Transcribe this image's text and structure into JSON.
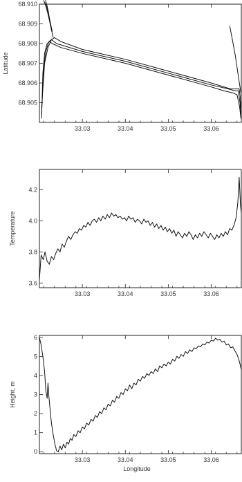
{
  "chart_data": [
    {
      "type": "line",
      "ylabel": "Latitude",
      "xlabel": "",
      "xlim": [
        33.02,
        33.067
      ],
      "ylim": [
        68.904,
        68.91
      ],
      "xticks": [
        "33.03",
        "33.04",
        "33.05",
        "33.06"
      ],
      "yticks": [
        "68.905",
        "68.906",
        "68.907",
        "68.908",
        "68.909",
        "68.910"
      ],
      "grid": false,
      "series": [
        {
          "x": [
            33.0205,
            33.0208,
            33.0212,
            33.0218,
            33.0224,
            33.023,
            33.025,
            33.03,
            33.04,
            33.05,
            33.06,
            33.063,
            33.065,
            33.066,
            33.0666,
            33.0669
          ],
          "y": [
            68.9042,
            68.9065,
            68.9075,
            68.908,
            68.9081,
            68.908,
            68.9078,
            68.9075,
            68.907,
            68.9064,
            68.9058,
            68.9056,
            68.9055,
            68.9054,
            68.9048,
            68.9042
          ]
        },
        {
          "x": [
            33.0205,
            33.021,
            33.0215,
            33.0222,
            33.0228,
            33.024,
            33.03,
            33.04,
            33.05,
            33.06,
            33.064,
            33.0655,
            33.0663,
            33.0667,
            33.0669
          ],
          "y": [
            68.9044,
            68.9068,
            68.9076,
            68.9081,
            68.9082,
            68.908,
            68.9076,
            68.9071,
            68.9065,
            68.9059,
            68.9057,
            68.9056,
            68.9056,
            68.905,
            68.9044
          ]
        },
        {
          "x": [
            33.0205,
            33.0212,
            33.022,
            33.0228,
            33.0235,
            33.025,
            33.03,
            33.04,
            33.05,
            33.06,
            33.0645,
            33.0658,
            33.0665,
            33.0668,
            33.0669
          ],
          "y": [
            68.9047,
            68.907,
            68.9078,
            68.9082,
            68.9083,
            68.9081,
            68.9077,
            68.9072,
            68.9066,
            68.906,
            68.9057,
            68.9057,
            68.9057,
            68.9052,
            68.9047
          ]
        },
        {
          "x": [
            33.021,
            33.0215,
            33.022,
            33.0224,
            33.0228,
            33.0232
          ],
          "y": [
            68.9102,
            68.9099,
            68.9095,
            68.9091,
            68.9087,
            68.9083
          ]
        },
        {
          "x": [
            33.0212,
            33.0218,
            33.0222,
            33.0226,
            33.023
          ],
          "y": [
            68.9101,
            68.9098,
            68.9094,
            68.909,
            68.9086
          ]
        },
        {
          "x": [
            33.0214,
            33.0218,
            33.0221,
            33.0224,
            33.0227
          ],
          "y": [
            68.9102,
            68.9099,
            68.9096,
            68.9092,
            68.9088
          ]
        },
        {
          "x": [
            33.0643,
            33.065,
            33.0656,
            33.066,
            33.0664,
            33.0667,
            33.0669
          ],
          "y": [
            68.9089,
            68.9081,
            68.9074,
            68.9068,
            68.9062,
            68.9058,
            68.9055
          ]
        }
      ]
    },
    {
      "type": "line",
      "ylabel": "Temperature",
      "xlabel": "",
      "xlim": [
        33.02,
        33.067
      ],
      "ylim": [
        3.57,
        4.33
      ],
      "xticks": [
        "33.03",
        "33.04",
        "33.05",
        "33.06"
      ],
      "yticks": [
        "3.6",
        "3.8",
        "4.0",
        "4.2"
      ],
      "grid": false,
      "series": [
        {
          "x": [
            33.02,
            33.0204,
            33.0209,
            33.0213,
            33.0218,
            33.0223,
            33.0228,
            33.0233,
            33.0238,
            33.0243,
            33.0248,
            33.0253,
            33.0258,
            33.0263,
            33.0268,
            33.0273,
            33.0278,
            33.0283,
            33.0288,
            33.0293,
            33.0298,
            33.0303,
            33.0308,
            33.0313,
            33.0318,
            33.0323,
            33.0328,
            33.0333,
            33.0338,
            33.0343,
            33.0348,
            33.0353,
            33.0358,
            33.0363,
            33.0368,
            33.0373,
            33.0378,
            33.0383,
            33.0388,
            33.0393,
            33.0398,
            33.0403,
            33.0408,
            33.0413,
            33.0418,
            33.0423,
            33.0428,
            33.0433,
            33.0438,
            33.0443,
            33.0448,
            33.0453,
            33.0458,
            33.0463,
            33.0468,
            33.0473,
            33.0478,
            33.0483,
            33.0488,
            33.0493,
            33.0498,
            33.0503,
            33.0508,
            33.0513,
            33.0518,
            33.0523,
            33.0528,
            33.0533,
            33.0538,
            33.0543,
            33.0548,
            33.0553,
            33.0558,
            33.0563,
            33.0568,
            33.0573,
            33.0578,
            33.0583,
            33.0588,
            33.0593,
            33.0598,
            33.0603,
            33.0608,
            33.0613,
            33.0618,
            33.0623,
            33.0628,
            33.0633,
            33.0638,
            33.0643,
            33.0648,
            33.0653,
            33.0658,
            33.0662,
            33.0665,
            33.0668,
            33.067
          ],
          "y": [
            3.62,
            3.78,
            3.75,
            3.8,
            3.74,
            3.72,
            3.77,
            3.75,
            3.79,
            3.82,
            3.8,
            3.85,
            3.83,
            3.87,
            3.9,
            3.88,
            3.91,
            3.93,
            3.92,
            3.95,
            3.94,
            3.97,
            3.96,
            3.99,
            3.97,
            4.0,
            4.01,
            3.99,
            4.02,
            4.0,
            4.03,
            4.01,
            4.04,
            4.02,
            4.05,
            4.03,
            4.04,
            4.02,
            4.03,
            4.01,
            4.02,
            4.0,
            4.03,
            4.01,
            4.02,
            3.99,
            4.01,
            4.0,
            3.98,
            4.01,
            3.99,
            4.0,
            3.97,
            3.99,
            3.96,
            3.98,
            3.95,
            3.97,
            3.94,
            3.96,
            3.93,
            3.95,
            3.92,
            3.94,
            3.9,
            3.93,
            3.91,
            3.89,
            3.92,
            3.9,
            3.93,
            3.91,
            3.88,
            3.91,
            3.89,
            3.92,
            3.9,
            3.93,
            3.91,
            3.89,
            3.92,
            3.9,
            3.88,
            3.91,
            3.89,
            3.92,
            3.9,
            3.93,
            3.91,
            3.95,
            3.94,
            3.97,
            4.02,
            4.12,
            4.28,
            4.1,
            4.05
          ]
        }
      ]
    },
    {
      "type": "line",
      "ylabel": "Height, m",
      "xlabel": "Longitude",
      "xlim": [
        33.02,
        33.067
      ],
      "ylim": [
        -0.1,
        6.1
      ],
      "xticks": [
        "33.03",
        "33.04",
        "33.05",
        "33.06"
      ],
      "yticks": [
        "0",
        "1",
        "2",
        "3",
        "4",
        "5",
        "6"
      ],
      "grid": false,
      "series": [
        {
          "x": [
            33.02,
            33.0204,
            33.0208,
            33.0212,
            33.0215,
            33.0218,
            33.022,
            33.0222,
            33.0225,
            33.0228,
            33.0232,
            33.0236,
            33.024,
            33.0244,
            33.0248,
            33.0252,
            33.0256,
            33.026,
            33.0264,
            33.0268,
            33.0272,
            33.0276,
            33.028,
            33.0285,
            33.029,
            33.0295,
            33.03,
            33.0305,
            33.031,
            33.0315,
            33.032,
            33.0325,
            33.033,
            33.0335,
            33.034,
            33.0345,
            33.035,
            33.0355,
            33.036,
            33.0365,
            33.037,
            33.0375,
            33.038,
            33.0385,
            33.039,
            33.0395,
            33.04,
            33.0405,
            33.041,
            33.0415,
            33.042,
            33.0425,
            33.043,
            33.0435,
            33.044,
            33.0445,
            33.045,
            33.0455,
            33.046,
            33.0465,
            33.047,
            33.0475,
            33.048,
            33.0485,
            33.049,
            33.0495,
            33.05,
            33.0505,
            33.051,
            33.0515,
            33.052,
            33.0525,
            33.053,
            33.0535,
            33.054,
            33.0545,
            33.055,
            33.0555,
            33.056,
            33.0565,
            33.057,
            33.0575,
            33.058,
            33.0585,
            33.059,
            33.0595,
            33.06,
            33.0605,
            33.061,
            33.0615,
            33.062,
            33.0625,
            33.063,
            33.0635,
            33.064,
            33.0645,
            33.065,
            33.0655,
            33.066,
            33.0664,
            33.0667,
            33.067
          ],
          "y": [
            6.0,
            5.6,
            5.0,
            4.2,
            3.2,
            2.8,
            3.6,
            2.9,
            2.2,
            1.5,
            0.9,
            0.4,
            0.05,
            0.0,
            0.3,
            0.1,
            0.4,
            0.2,
            0.5,
            0.4,
            0.7,
            0.6,
            0.9,
            0.8,
            1.1,
            1.0,
            1.3,
            1.2,
            1.5,
            1.4,
            1.7,
            1.6,
            1.9,
            1.8,
            2.1,
            2.0,
            2.3,
            2.2,
            2.5,
            2.4,
            2.7,
            2.6,
            2.9,
            2.8,
            3.1,
            3.0,
            3.3,
            3.2,
            3.5,
            3.3,
            3.6,
            3.5,
            3.8,
            3.7,
            3.95,
            3.85,
            4.1,
            4.0,
            4.2,
            4.1,
            4.35,
            4.2,
            4.5,
            4.4,
            4.6,
            4.5,
            4.7,
            4.6,
            4.85,
            4.75,
            5.0,
            4.9,
            5.1,
            5.0,
            5.25,
            5.15,
            5.35,
            5.25,
            5.45,
            5.4,
            5.55,
            5.5,
            5.65,
            5.6,
            5.75,
            5.7,
            5.85,
            5.8,
            5.95,
            5.85,
            5.9,
            5.75,
            5.8,
            5.6,
            5.65,
            5.45,
            5.5,
            5.3,
            5.1,
            4.85,
            4.6,
            4.3
          ]
        }
      ]
    }
  ]
}
